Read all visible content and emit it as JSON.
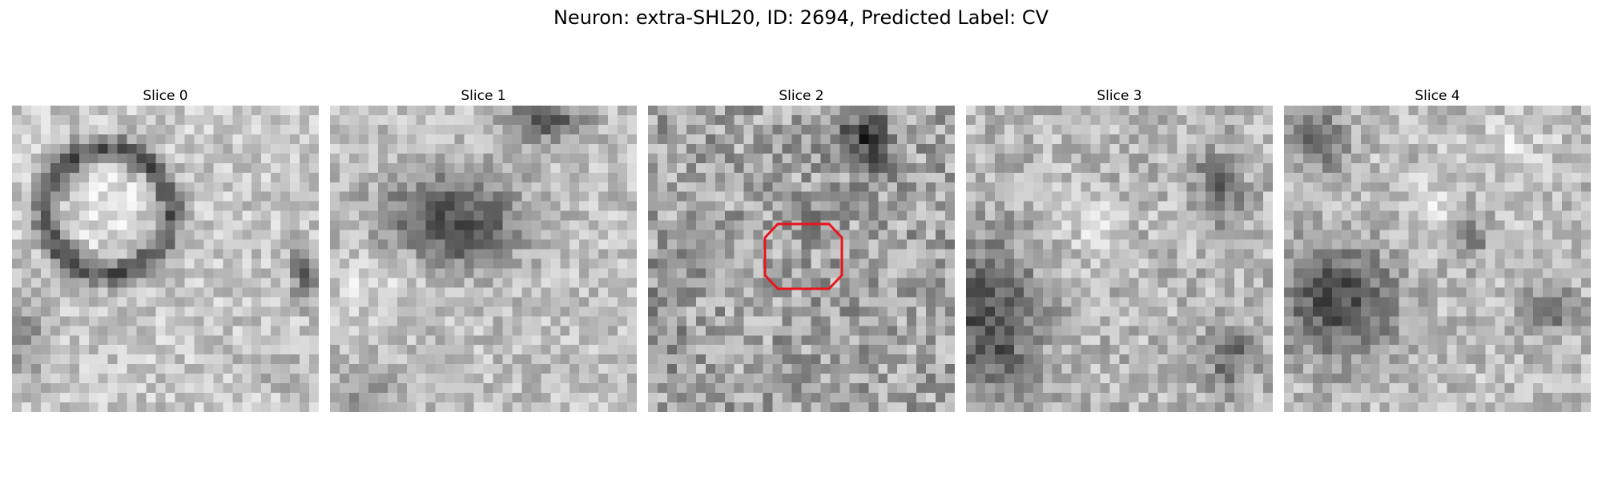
{
  "figure": {
    "title": "Neuron: extra-SHL20, ID: 2694, Predicted Label: CV",
    "roi_color": "#e8141c",
    "roi_slice_index": 2,
    "grid_size": 32,
    "slices": [
      {
        "title": "Slice 0"
      },
      {
        "title": "Slice 1"
      },
      {
        "title": "Slice 2"
      },
      {
        "title": "Slice 3"
      },
      {
        "title": "Slice 4"
      }
    ]
  }
}
